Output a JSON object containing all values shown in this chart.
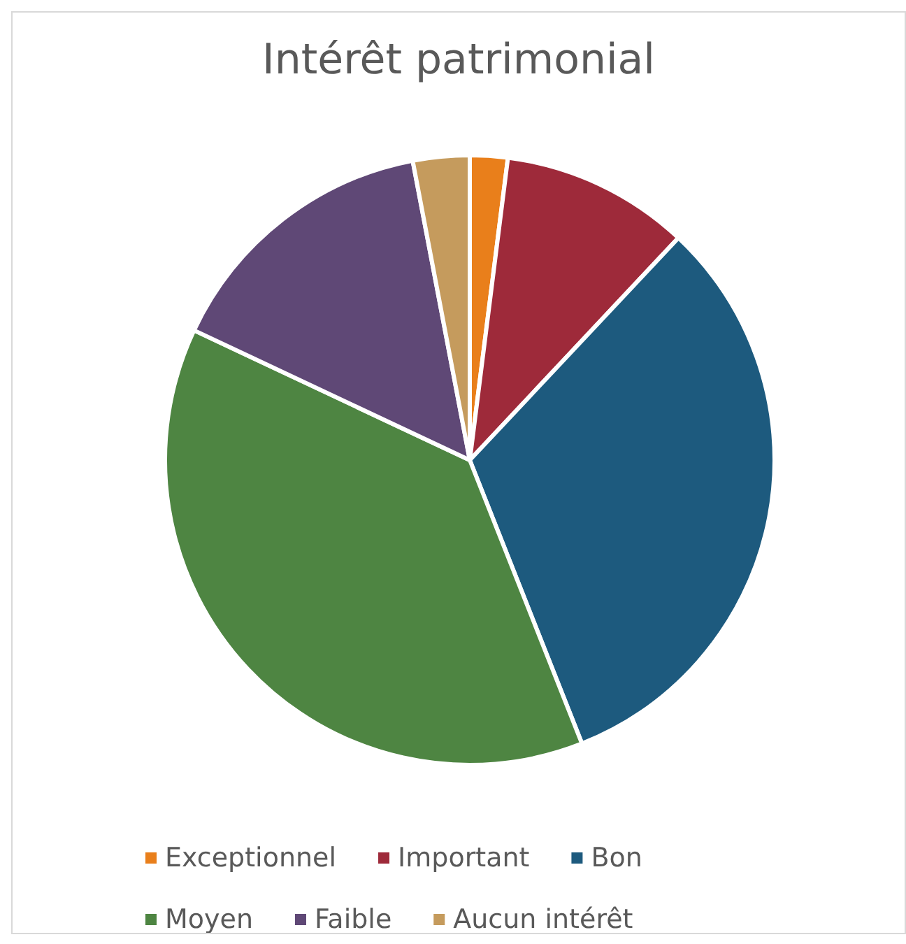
{
  "chart_data": {
    "type": "pie",
    "title": "Intérêt patrimonial",
    "categories": [
      "Exceptionnel",
      "Important",
      "Bon",
      "Moyen",
      "Faible",
      "Aucun intérêt"
    ],
    "values": [
      2,
      10,
      32,
      38,
      15,
      3
    ],
    "colors": [
      "#e97f1b",
      "#9e2a3a",
      "#1d5a7e",
      "#4e8542",
      "#5f4876",
      "#c59b5d"
    ],
    "legend": "bottom"
  }
}
